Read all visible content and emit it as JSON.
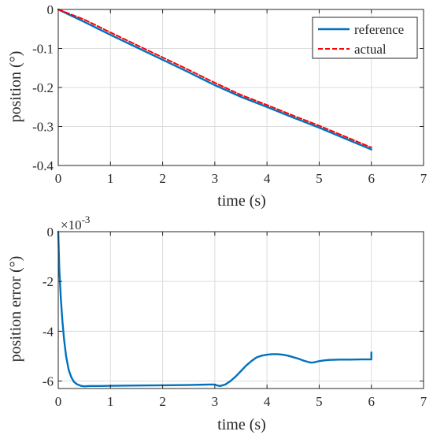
{
  "colors": {
    "reference": "#0072bd",
    "actual": "#ff0000",
    "error": "#0072bd",
    "axis": "#262626",
    "grid": "#dcdcdc"
  },
  "chart_data": [
    {
      "type": "line",
      "xlabel": "time (s)",
      "ylabel": "position (°)",
      "xlim": [
        0,
        7
      ],
      "ylim": [
        -0.4,
        0
      ],
      "xticks": [
        0,
        1,
        2,
        3,
        4,
        5,
        6,
        7
      ],
      "yticks": [
        -0.4,
        -0.3,
        -0.2,
        -0.1,
        0
      ],
      "ytick_labels": [
        "-0.4",
        "-0.3",
        "-0.2",
        "-0.1",
        "0"
      ],
      "grid": true,
      "legend": "top-right",
      "series": [
        {
          "name": "reference",
          "style": "solid",
          "x": [
            0,
            0.5,
            1,
            1.5,
            2,
            2.5,
            3,
            3.5,
            4,
            4.5,
            5,
            5.5,
            6
          ],
          "y": [
            0,
            -0.032,
            -0.065,
            -0.097,
            -0.129,
            -0.161,
            -0.194,
            -0.224,
            -0.25,
            -0.277,
            -0.303,
            -0.331,
            -0.359
          ]
        },
        {
          "name": "actual",
          "style": "dashed",
          "x": [
            0,
            0.5,
            1,
            1.5,
            2,
            2.5,
            3,
            3.5,
            4,
            4.5,
            5,
            5.5,
            6
          ],
          "y": [
            0,
            -0.026,
            -0.059,
            -0.091,
            -0.123,
            -0.155,
            -0.188,
            -0.219,
            -0.245,
            -0.272,
            -0.298,
            -0.326,
            -0.354
          ]
        }
      ]
    },
    {
      "type": "line",
      "xlabel": "time (s)",
      "ylabel": "position error (°)",
      "xlim": [
        0,
        7
      ],
      "ylim": [
        -6.3,
        0
      ],
      "exponent_label": "×10",
      "exponent_power": "-3",
      "xticks": [
        0,
        1,
        2,
        3,
        4,
        5,
        6,
        7
      ],
      "yticks": [
        -6,
        -4,
        -2,
        0
      ],
      "ytick_labels": [
        "-6",
        "-4",
        "-2",
        "0"
      ],
      "grid": true,
      "series": [
        {
          "style": "solid",
          "x": [
            0,
            0.02,
            0.05,
            0.08,
            0.11,
            0.15,
            0.2,
            0.25,
            0.3,
            0.36,
            0.43,
            0.5,
            0.6,
            0.8,
            1.0,
            1.5,
            2.0,
            2.5,
            2.9,
            3.0,
            3.05,
            3.1,
            3.2,
            3.3,
            3.4,
            3.5,
            3.6,
            3.7,
            3.8,
            3.9,
            4.0,
            4.1,
            4.2,
            4.3,
            4.4,
            4.5,
            4.6,
            4.7,
            4.8,
            4.85,
            4.9,
            5.0,
            5.1,
            5.2,
            5.4,
            5.6,
            5.8,
            6.0,
            6.0,
            6.0
          ],
          "y": [
            0,
            -1.5,
            -2.7,
            -3.6,
            -4.3,
            -5.0,
            -5.55,
            -5.85,
            -6.03,
            -6.13,
            -6.19,
            -6.21,
            -6.2,
            -6.2,
            -6.19,
            -6.18,
            -6.17,
            -6.16,
            -6.14,
            -6.14,
            -6.18,
            -6.2,
            -6.14,
            -6.0,
            -5.82,
            -5.6,
            -5.38,
            -5.2,
            -5.05,
            -4.98,
            -4.94,
            -4.92,
            -4.92,
            -4.94,
            -4.98,
            -5.04,
            -5.1,
            -5.18,
            -5.24,
            -5.26,
            -5.25,
            -5.2,
            -5.17,
            -5.15,
            -5.14,
            -5.14,
            -5.13,
            -5.13,
            -4.85,
            -5.13
          ]
        }
      ]
    }
  ]
}
